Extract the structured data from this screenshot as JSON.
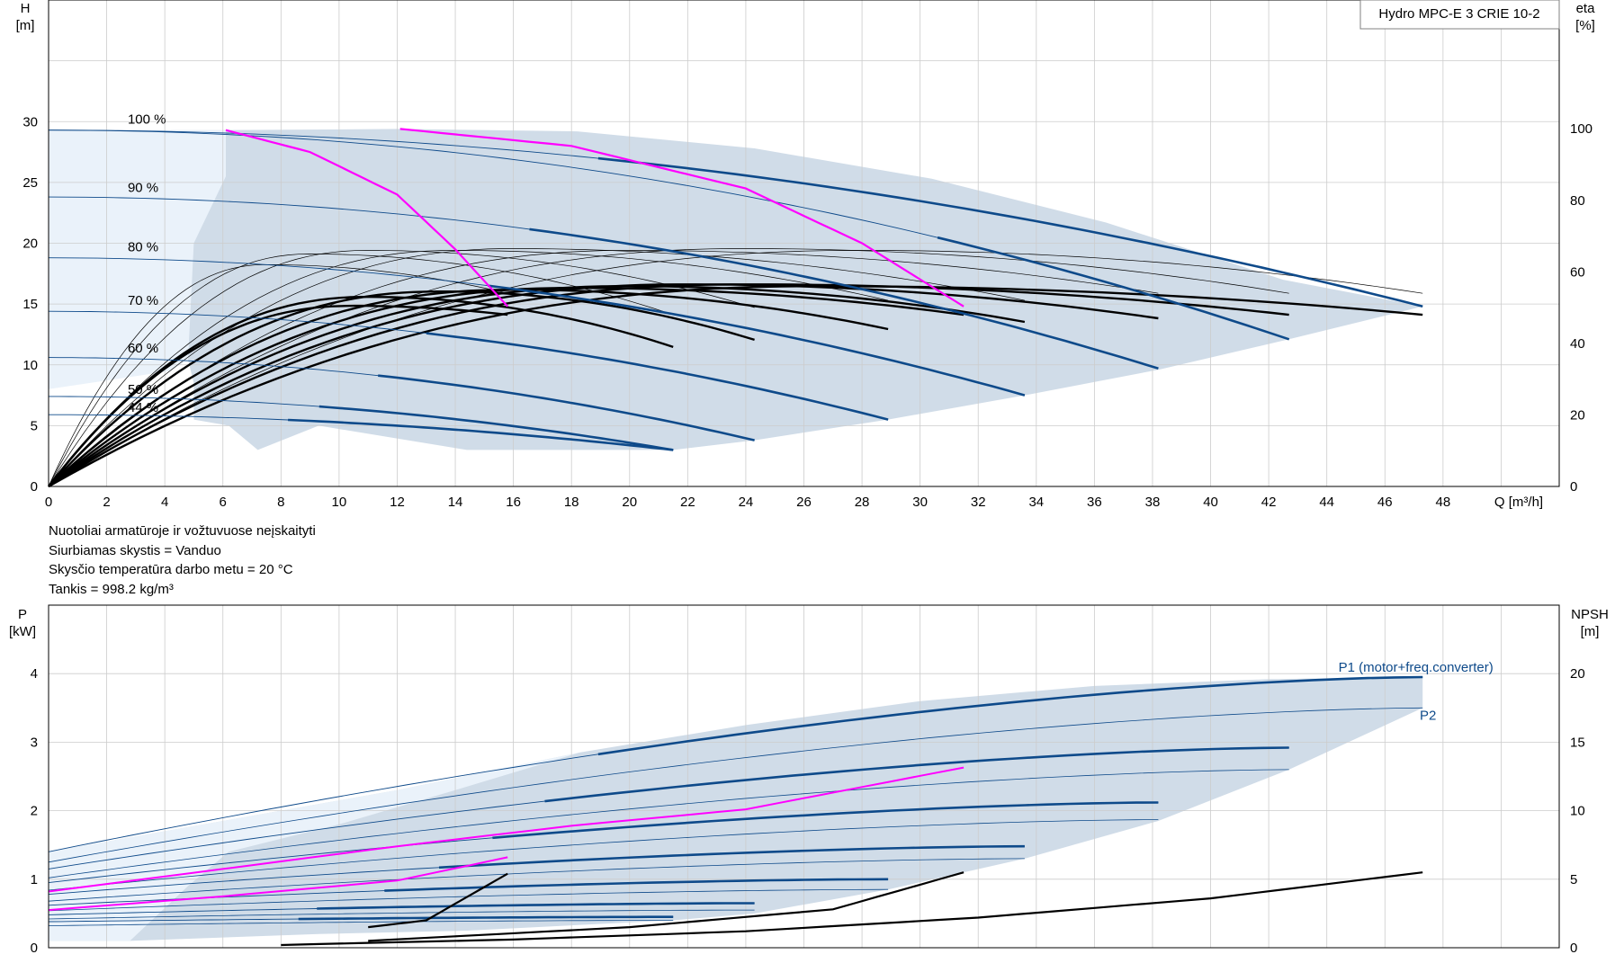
{
  "title_box": "Hydro MPC-E 3 CRIE 10-2",
  "notes": [
    "Nuotoliai armatūroje ir vožtuvuose neįskaityti",
    "Siurbiamas skystis = Vanduo",
    "Skysčio temperatūra darbo metu = 20 °C",
    "Tankis = 998.2 kg/m³"
  ],
  "colors": {
    "envelope": "#d0dce8",
    "envelope_light": "#eaf2fa",
    "curve": "#0e4a8a",
    "bep": "#ff00ff",
    "grid": "#cccccc"
  },
  "chart_data": [
    {
      "type": "line",
      "name": "qh",
      "xlabel": "Q [m³/h]",
      "ylabel": "H\n[m]",
      "y2label": "eta\n[%]",
      "xlim": [
        0,
        52
      ],
      "ylim": [
        0,
        40
      ],
      "y2lim": [
        0,
        136
      ],
      "x_ticks": [
        0,
        2,
        4,
        6,
        8,
        10,
        12,
        14,
        16,
        18,
        20,
        22,
        24,
        26,
        28,
        30,
        32,
        34,
        36,
        38,
        40,
        42,
        44,
        46,
        48
      ],
      "y_ticks": [
        0,
        5,
        10,
        15,
        20,
        25,
        30
      ],
      "y2_ticks": [
        0,
        20,
        40,
        60,
        80,
        100
      ],
      "speed_labels": [
        {
          "text": "100 %",
          "q": 2.6,
          "h": 30.2
        },
        {
          "text": "90 %",
          "q": 2.6,
          "h": 24.6
        },
        {
          "text": "80 %",
          "q": 2.6,
          "h": 19.7
        },
        {
          "text": "70 %",
          "q": 2.6,
          "h": 15.3
        },
        {
          "text": "60 %",
          "q": 2.6,
          "h": 11.4
        },
        {
          "text": "50 %",
          "q": 2.6,
          "h": 8.0
        },
        {
          "text": "44 %",
          "q": 2.6,
          "h": 6.5
        }
      ],
      "envelope": [
        [
          0,
          29.3
        ],
        [
          6.1,
          29.3
        ],
        [
          12.1,
          29.4
        ],
        [
          18.2,
          29.2
        ],
        [
          24.3,
          27.8
        ],
        [
          30.4,
          25.3
        ],
        [
          36.4,
          21.7
        ],
        [
          42.5,
          17.0
        ],
        [
          47.3,
          14.8
        ],
        [
          42.7,
          12.1
        ],
        [
          38.2,
          9.6
        ],
        [
          33.6,
          7.5
        ],
        [
          28.9,
          5.5
        ],
        [
          24.3,
          3.8
        ],
        [
          21.5,
          3.0
        ],
        [
          14.4,
          3.0
        ],
        [
          9.3,
          5.0
        ],
        [
          7.2,
          3.0
        ],
        [
          6.2,
          5.0
        ],
        [
          5.0,
          5.5
        ],
        [
          5.0,
          8.5
        ],
        [
          4.8,
          10.4
        ],
        [
          4.2,
          14.5
        ],
        [
          4.2,
          29.3
        ]
      ],
      "envelope_light": [
        [
          0,
          29.3
        ],
        [
          6.1,
          29.3
        ],
        [
          6.1,
          25.5
        ],
        [
          5.0,
          20
        ],
        [
          4.8,
          10.4
        ],
        [
          4.2,
          9.5
        ],
        [
          0,
          8.0
        ]
      ],
      "qh_curves": [
        {
          "speed": "100 %",
          "q0": 0,
          "h0": 29.3,
          "q_end": 47.3,
          "h_end": 14.8,
          "bold_from": 18.3
        },
        {
          "speed": "100 % (2 pumps)",
          "q0": 0,
          "h0": 29.3,
          "q_end": 42.7,
          "h_end": 12.1,
          "bold_from": 30.5
        },
        {
          "speed": "90 %",
          "q0": 0,
          "h0": 23.8,
          "q_end": 38.2,
          "h_end": 9.7,
          "bold_from": 16.5
        },
        {
          "speed": "80 %",
          "q0": 0,
          "h0": 18.8,
          "q_end": 33.6,
          "h_end": 7.5,
          "bold_from": 14.7
        },
        {
          "speed": "70 %",
          "q0": 0,
          "h0": 14.4,
          "q_end": 28.9,
          "h_end": 5.5,
          "bold_from": 12.9
        },
        {
          "speed": "60 %",
          "q0": 0,
          "h0": 10.6,
          "q_end": 24.3,
          "h_end": 3.8,
          "bold_from": 11.0
        },
        {
          "speed": "50 %",
          "q0": 0,
          "h0": 7.4,
          "q_end": 21.5,
          "h_end": 3.0,
          "bold_from": 9.2
        },
        {
          "speed": "44 %",
          "q0": 0,
          "h0": 5.9,
          "q_end": 21.5,
          "h_end": 3.0,
          "bold_from": 8.2
        }
      ],
      "bep_curves": [
        {
          "points": [
            [
              6.1,
              29.3
            ],
            [
              9,
              27.5
            ],
            [
              12,
              24.0
            ],
            [
              14,
              19.5
            ],
            [
              15.8,
              14.8
            ]
          ]
        },
        {
          "points": [
            [
              12.1,
              29.4
            ],
            [
              18,
              28.0
            ],
            [
              24,
              24.5
            ],
            [
              28,
              20.0
            ],
            [
              31.5,
              14.8
            ]
          ]
        }
      ],
      "eta_curves": [
        {
          "eta_peak": 56.0,
          "q_peak": 26.5,
          "q_end": 47.3,
          "eta_end": 48.0,
          "bold": true
        },
        {
          "eta_peak": 56.5,
          "q_peak": 24.0,
          "q_end": 42.7,
          "eta_end": 48.0,
          "bold": true
        },
        {
          "eta_peak": 56.5,
          "q_peak": 22.0,
          "q_end": 38.2,
          "eta_end": 47.0,
          "bold": true
        },
        {
          "eta_peak": 56.0,
          "q_peak": 20.0,
          "q_end": 33.6,
          "eta_end": 46.0,
          "bold": true
        },
        {
          "eta_peak": 55.5,
          "q_peak": 18.0,
          "q_end": 31.5,
          "eta_end": 48.0,
          "bold": true
        },
        {
          "eta_peak": 55.0,
          "q_peak": 16.0,
          "q_end": 28.9,
          "eta_end": 44.0,
          "bold": true
        },
        {
          "eta_peak": 54.5,
          "q_peak": 13.5,
          "q_end": 24.3,
          "eta_end": 41.0,
          "bold": true
        },
        {
          "eta_peak": 53.0,
          "q_peak": 11.0,
          "q_end": 21.5,
          "eta_end": 39.0,
          "bold": true
        },
        {
          "eta_peak": 50.5,
          "q_peak": 10.5,
          "q_end": 15.8,
          "eta_end": 48.0,
          "bold": true
        },
        {
          "eta_peak": 66.0,
          "q_peak": 28.0,
          "q_end": 47.3,
          "eta_end": 54.0,
          "bold": false
        },
        {
          "eta_peak": 66.5,
          "q_peak": 24.0,
          "q_end": 42.7,
          "eta_end": 54.0,
          "bold": false
        },
        {
          "eta_peak": 66.0,
          "q_peak": 20.0,
          "q_end": 38.2,
          "eta_end": 54.0,
          "bold": false
        },
        {
          "eta_peak": 66.5,
          "q_peak": 16.0,
          "q_end": 33.6,
          "eta_end": 52.0,
          "bold": false
        },
        {
          "eta_peak": 66.0,
          "q_peak": 14.0,
          "q_end": 28.9,
          "eta_end": 52.0,
          "bold": false
        },
        {
          "eta_peak": 66.0,
          "q_peak": 11.0,
          "q_end": 24.3,
          "eta_end": 50.0,
          "bold": false
        },
        {
          "eta_peak": 65.0,
          "q_peak": 9.0,
          "q_end": 21.5,
          "eta_end": 48.0,
          "bold": false
        },
        {
          "eta_peak": 62.0,
          "q_peak": 7.5,
          "q_end": 15.8,
          "eta_end": 54.0,
          "bold": false
        }
      ]
    },
    {
      "type": "line",
      "name": "power",
      "ylabel": "P\n[kW]",
      "y2label": "NPSH\n[m]",
      "xlim": [
        0,
        52
      ],
      "ylim": [
        0,
        5
      ],
      "y2lim": [
        0,
        25
      ],
      "y_ticks": [
        0,
        1,
        2,
        3,
        4
      ],
      "y2_ticks": [
        0,
        5,
        10,
        15,
        20
      ],
      "series_labels": [
        {
          "text": "P1 (motor+freq.converter)",
          "q": 44.4,
          "p": 4.03
        },
        {
          "text": "P2",
          "q": 47.2,
          "p": 3.33
        }
      ],
      "envelope": [
        [
          0,
          1.4
        ],
        [
          6,
          1.85
        ],
        [
          12,
          2.3
        ],
        [
          18.3,
          2.85
        ],
        [
          24,
          3.25
        ],
        [
          30,
          3.6
        ],
        [
          36,
          3.82
        ],
        [
          42,
          3.92
        ],
        [
          47.3,
          3.95
        ],
        [
          47.3,
          3.5
        ],
        [
          42.7,
          2.6
        ],
        [
          38.2,
          1.85
        ],
        [
          33.6,
          1.3
        ],
        [
          28.9,
          0.85
        ],
        [
          24.3,
          0.5
        ],
        [
          21.5,
          0.4
        ],
        [
          14.4,
          0.25
        ],
        [
          9.3,
          0.2
        ],
        [
          2.8,
          0.1
        ],
        [
          0,
          0.1
        ]
      ],
      "envelope_light_split": [
        [
          18.3,
          2.85
        ],
        [
          14,
          2.3
        ],
        [
          10,
          1.8
        ],
        [
          6.2,
          1.4
        ],
        [
          4.8,
          0.9
        ],
        [
          2.8,
          0.1
        ]
      ],
      "p1_curves": [
        {
          "q0": 0,
          "p0": 1.4,
          "q_end": 47.3,
          "p_end": 3.95,
          "bold_from": 18.3
        },
        {
          "q0": 0,
          "p0": 1.15,
          "q_end": 42.7,
          "p_end": 2.92,
          "bold_from": 16.5
        },
        {
          "q0": 0,
          "p0": 0.95,
          "q_end": 38.2,
          "p_end": 2.12,
          "bold_from": 14.7
        },
        {
          "q0": 0,
          "p0": 0.78,
          "q_end": 33.6,
          "p_end": 1.48,
          "bold_from": 12.9
        },
        {
          "q0": 0,
          "p0": 0.62,
          "q_end": 28.9,
          "p_end": 1.0,
          "bold_from": 11.0
        },
        {
          "q0": 0,
          "p0": 0.48,
          "q_end": 24.3,
          "p_end": 0.65,
          "bold_from": 9.2
        },
        {
          "q0": 0,
          "p0": 0.38,
          "q_end": 21.5,
          "p_end": 0.45,
          "bold_from": 8.2
        }
      ],
      "p2_curves": [
        {
          "q0": 0,
          "p0": 1.25,
          "q_end": 47.3,
          "p_end": 3.5
        },
        {
          "q0": 0,
          "p0": 1.02,
          "q_end": 42.7,
          "p_end": 2.6
        },
        {
          "q0": 0,
          "p0": 0.84,
          "q_end": 38.2,
          "p_end": 1.87
        },
        {
          "q0": 0,
          "p0": 0.68,
          "q_end": 33.6,
          "p_end": 1.3
        },
        {
          "q0": 0,
          "p0": 0.54,
          "q_end": 28.9,
          "p_end": 0.85
        },
        {
          "q0": 0,
          "p0": 0.42,
          "q_end": 24.3,
          "p_end": 0.55
        },
        {
          "q0": 0,
          "p0": 0.32,
          "q_end": 21.5,
          "p_end": 0.4
        }
      ],
      "bep_p1_curves": [
        {
          "points": [
            [
              0,
              0.82
            ],
            [
              6,
              1.15
            ],
            [
              12,
              1.48
            ],
            [
              18,
              1.78
            ],
            [
              24,
              2.02
            ],
            [
              31.5,
              2.63
            ]
          ]
        },
        {
          "points": [
            [
              0,
              0.55
            ],
            [
              6,
              0.75
            ],
            [
              12,
              0.98
            ],
            [
              15.8,
              1.32
            ]
          ]
        }
      ],
      "npsh_curves": [
        {
          "points": [
            [
              8,
              0.2
            ],
            [
              16,
              0.6
            ],
            [
              24,
              1.2
            ],
            [
              32,
              2.2
            ],
            [
              40,
              3.6
            ],
            [
              47.3,
              5.5
            ]
          ]
        },
        {
          "points": [
            [
              11,
              1.5
            ],
            [
              13,
              2.0
            ],
            [
              15.8,
              5.4
            ]
          ]
        },
        {
          "points": [
            [
              11,
              0.5
            ],
            [
              20,
              1.5
            ],
            [
              27,
              2.8
            ],
            [
              31.5,
              5.5
            ]
          ]
        }
      ]
    }
  ]
}
